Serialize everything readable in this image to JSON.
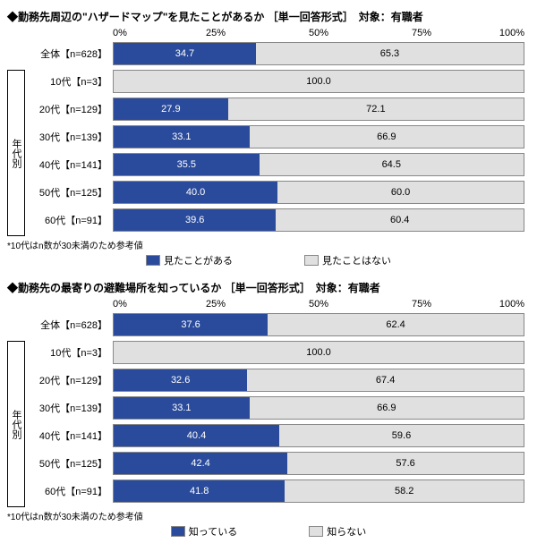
{
  "colors": {
    "yes": "#2a4b9b",
    "no": "#e0e0e0"
  },
  "axis_ticks": [
    "0%",
    "25%",
    "50%",
    "75%",
    "100%"
  ],
  "group_label": "年代別",
  "note": "*10代はn数が30未満のため参考値",
  "charts": [
    {
      "title": "◆勤務先周辺の\"ハザードマップ\"を見たことがあるか ［単一回答形式］　対象：有職者",
      "legend": [
        "見たことがある",
        "見たことはない"
      ],
      "overall": {
        "label": "全体【n=628】",
        "a": 34.7,
        "b": 65.3
      },
      "rows": [
        {
          "label": "10代【n=3】",
          "a": 0,
          "b": 100.0
        },
        {
          "label": "20代【n=129】",
          "a": 27.9,
          "b": 72.1
        },
        {
          "label": "30代【n=139】",
          "a": 33.1,
          "b": 66.9
        },
        {
          "label": "40代【n=141】",
          "a": 35.5,
          "b": 64.5
        },
        {
          "label": "50代【n=125】",
          "a": 40.0,
          "b": 60.0
        },
        {
          "label": "60代【n=91】",
          "a": 39.6,
          "b": 60.4
        }
      ]
    },
    {
      "title": "◆勤務先の最寄りの避難場所を知っているか ［単一回答形式］　対象：有職者",
      "legend": [
        "知っている",
        "知らない"
      ],
      "overall": {
        "label": "全体【n=628】",
        "a": 37.6,
        "b": 62.4
      },
      "rows": [
        {
          "label": "10代【n=3】",
          "a": 0,
          "b": 100.0
        },
        {
          "label": "20代【n=129】",
          "a": 32.6,
          "b": 67.4
        },
        {
          "label": "30代【n=139】",
          "a": 33.1,
          "b": 66.9
        },
        {
          "label": "40代【n=141】",
          "a": 40.4,
          "b": 59.6
        },
        {
          "label": "50代【n=125】",
          "a": 42.4,
          "b": 57.6
        },
        {
          "label": "60代【n=91】",
          "a": 41.8,
          "b": 58.2
        }
      ]
    }
  ]
}
